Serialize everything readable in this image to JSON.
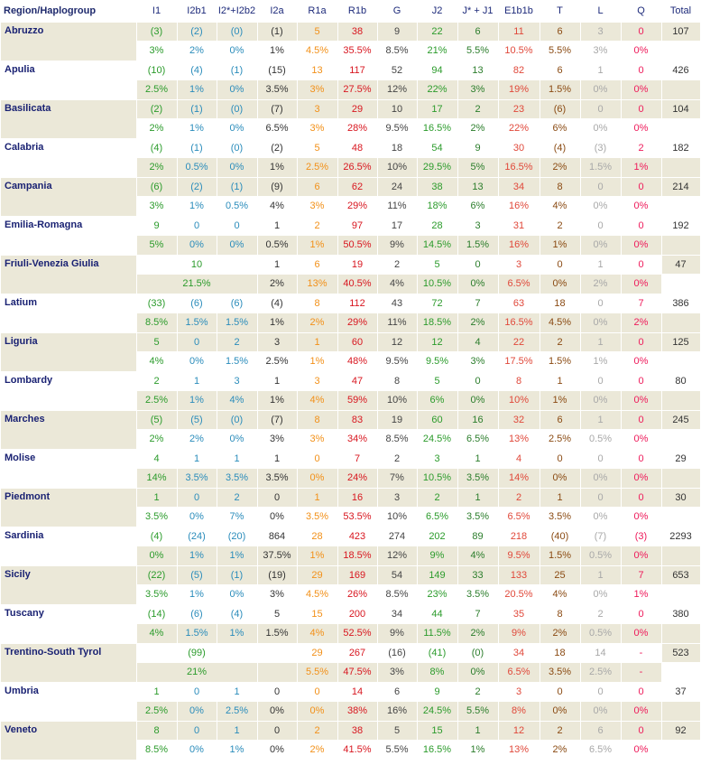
{
  "headers": [
    "Region/Haplogroup",
    "I1",
    "I2b1",
    "I2*+I2b2",
    "I2a",
    "R1a",
    "R1b",
    "G",
    "J2",
    "J* + J1",
    "E1b1b",
    "T",
    "L",
    "Q",
    "Total"
  ],
  "column_keys": [
    "i1",
    "i2b1",
    "i2x",
    "i2a",
    "r1a",
    "r1b",
    "g",
    "j2",
    "j1",
    "e",
    "t",
    "l",
    "q"
  ],
  "colors": {
    "region": "#1a2273",
    "shade": "#ebe8d8",
    "i1": "#2b9b2b",
    "i2": "#2a8cbb",
    "r1a": "#f29018",
    "r1b": "#d8161f",
    "j2": "#2b9b2b",
    "e1b1b": "#e0483a",
    "t": "#8a4a12",
    "l": "#a8a8a8",
    "q": "#ee1a5a"
  },
  "regions": [
    {
      "name": "Abruzzo",
      "total": "107",
      "counts": [
        "(3)",
        "(2)",
        "(0)",
        "(1)",
        "5",
        "38",
        "9",
        "22",
        "6",
        "11",
        "6",
        "3",
        "0"
      ],
      "percents": [
        "3%",
        "2%",
        "0%",
        "1%",
        "4.5%",
        "35.5%",
        "8.5%",
        "21%",
        "5.5%",
        "10.5%",
        "5.5%",
        "3%",
        "0%"
      ]
    },
    {
      "name": "Apulia",
      "total": "426",
      "counts": [
        "(10)",
        "(4)",
        "(1)",
        "(15)",
        "13",
        "117",
        "52",
        "94",
        "13",
        "82",
        "6",
        "1",
        "0"
      ],
      "percents": [
        "2.5%",
        "1%",
        "0%",
        "3.5%",
        "3%",
        "27.5%",
        "12%",
        "22%",
        "3%",
        "19%",
        "1.5%",
        "0%",
        "0%"
      ]
    },
    {
      "name": "Basilicata",
      "total": "104",
      "counts": [
        "(2)",
        "(1)",
        "(0)",
        "(7)",
        "3",
        "29",
        "10",
        "17",
        "2",
        "23",
        "(6)",
        "0",
        "0"
      ],
      "percents": [
        "2%",
        "1%",
        "0%",
        "6.5%",
        "3%",
        "28%",
        "9.5%",
        "16.5%",
        "2%",
        "22%",
        "6%",
        "0%",
        "0%"
      ]
    },
    {
      "name": "Calabria",
      "total": "182",
      "counts": [
        "(4)",
        "(1)",
        "(0)",
        "(2)",
        "5",
        "48",
        "18",
        "54",
        "9",
        "30",
        "(4)",
        "(3)",
        "2"
      ],
      "percents": [
        "2%",
        "0.5%",
        "0%",
        "1%",
        "2.5%",
        "26.5%",
        "10%",
        "29.5%",
        "5%",
        "16.5%",
        "2%",
        "1.5%",
        "1%"
      ]
    },
    {
      "name": "Campania",
      "total": "214",
      "counts": [
        "(6)",
        "(2)",
        "(1)",
        "(9)",
        "6",
        "62",
        "24",
        "38",
        "13",
        "34",
        "8",
        "0",
        "0"
      ],
      "percents": [
        "3%",
        "1%",
        "0.5%",
        "4%",
        "3%",
        "29%",
        "11%",
        "18%",
        "6%",
        "16%",
        "4%",
        "0%",
        "0%"
      ]
    },
    {
      "name": "Emilia-Romagna",
      "total": "192",
      "counts": [
        "9",
        "0",
        "0",
        "1",
        "2",
        "97",
        "17",
        "28",
        "3",
        "31",
        "2",
        "0",
        "0"
      ],
      "percents": [
        "5%",
        "0%",
        "0%",
        "0.5%",
        "1%",
        "50.5%",
        "9%",
        "14.5%",
        "1.5%",
        "16%",
        "1%",
        "0%",
        "0%"
      ]
    },
    {
      "name": "Friuli-Venezia Giulia",
      "total": "47",
      "merged": "10",
      "merged_pct": "21.5%",
      "counts": [
        "1",
        "6",
        "19",
        "2",
        "5",
        "0",
        "3",
        "0",
        "1",
        "0"
      ],
      "percents": [
        "2%",
        "13%",
        "40.5%",
        "4%",
        "10.5%",
        "0%",
        "6.5%",
        "0%",
        "2%",
        "0%"
      ]
    },
    {
      "name": "Latium",
      "total": "386",
      "counts": [
        "(33)",
        "(6)",
        "(6)",
        "(4)",
        "8",
        "112",
        "43",
        "72",
        "7",
        "63",
        "18",
        "0",
        "7"
      ],
      "percents": [
        "8.5%",
        "1.5%",
        "1.5%",
        "1%",
        "2%",
        "29%",
        "11%",
        "18.5%",
        "2%",
        "16.5%",
        "4.5%",
        "0%",
        "2%"
      ]
    },
    {
      "name": "Liguria",
      "total": "125",
      "counts": [
        "5",
        "0",
        "2",
        "3",
        "1",
        "60",
        "12",
        "12",
        "4",
        "22",
        "2",
        "1",
        "0"
      ],
      "percents": [
        "4%",
        "0%",
        "1.5%",
        "2.5%",
        "1%",
        "48%",
        "9.5%",
        "9.5%",
        "3%",
        "17.5%",
        "1.5%",
        "1%",
        "0%"
      ]
    },
    {
      "name": "Lombardy",
      "total": "80",
      "counts": [
        "2",
        "1",
        "3",
        "1",
        "3",
        "47",
        "8",
        "5",
        "0",
        "8",
        "1",
        "0",
        "0"
      ],
      "percents": [
        "2.5%",
        "1%",
        "4%",
        "1%",
        "4%",
        "59%",
        "10%",
        "6%",
        "0%",
        "10%",
        "1%",
        "0%",
        "0%"
      ]
    },
    {
      "name": "Marches",
      "total": "245",
      "counts": [
        "(5)",
        "(5)",
        "(0)",
        "(7)",
        "8",
        "83",
        "19",
        "60",
        "16",
        "32",
        "6",
        "1",
        "0"
      ],
      "percents": [
        "2%",
        "2%",
        "0%",
        "3%",
        "3%",
        "34%",
        "8.5%",
        "24.5%",
        "6.5%",
        "13%",
        "2.5%",
        "0.5%",
        "0%"
      ]
    },
    {
      "name": "Molise",
      "total": "29",
      "counts": [
        "4",
        "1",
        "1",
        "1",
        "0",
        "7",
        "2",
        "3",
        "1",
        "4",
        "0",
        "0",
        "0"
      ],
      "percents": [
        "14%",
        "3.5%",
        "3.5%",
        "3.5%",
        "0%",
        "24%",
        "7%",
        "10.5%",
        "3.5%",
        "14%",
        "0%",
        "0%",
        "0%"
      ]
    },
    {
      "name": "Piedmont",
      "total": "30",
      "counts": [
        "1",
        "0",
        "2",
        "0",
        "1",
        "16",
        "3",
        "2",
        "1",
        "2",
        "1",
        "0",
        "0"
      ],
      "percents": [
        "3.5%",
        "0%",
        "7%",
        "0%",
        "3.5%",
        "53.5%",
        "10%",
        "6.5%",
        "3.5%",
        "6.5%",
        "3.5%",
        "0%",
        "0%"
      ]
    },
    {
      "name": "Sardinia",
      "total": "2293",
      "counts": [
        "(4)",
        "(24)",
        "(20)",
        "864",
        "28",
        "423",
        "274",
        "202",
        "89",
        "218",
        "(40)",
        "(7)",
        "(3)"
      ],
      "percents": [
        "0%",
        "1%",
        "1%",
        "37.5%",
        "1%",
        "18.5%",
        "12%",
        "9%",
        "4%",
        "9.5%",
        "1.5%",
        "0.5%",
        "0%"
      ]
    },
    {
      "name": "Sicily",
      "total": "653",
      "counts": [
        "(22)",
        "(5)",
        "(1)",
        "(19)",
        "29",
        "169",
        "54",
        "149",
        "33",
        "133",
        "25",
        "1",
        "7"
      ],
      "percents": [
        "3.5%",
        "1%",
        "0%",
        "3%",
        "4.5%",
        "26%",
        "8.5%",
        "23%",
        "3.5%",
        "20.5%",
        "4%",
        "0%",
        "1%"
      ]
    },
    {
      "name": "Tuscany",
      "total": "380",
      "counts": [
        "(14)",
        "(6)",
        "(4)",
        "5",
        "15",
        "200",
        "34",
        "44",
        "7",
        "35",
        "8",
        "2",
        "0"
      ],
      "percents": [
        "4%",
        "1.5%",
        "1%",
        "1.5%",
        "4%",
        "52.5%",
        "9%",
        "11.5%",
        "2%",
        "9%",
        "2%",
        "0.5%",
        "0%"
      ]
    },
    {
      "name": "Trentino-South Tyrol",
      "total": "523",
      "merged": "(99)",
      "merged_pct": "21%",
      "counts": [
        "",
        "29",
        "267",
        "(16)",
        "(41)",
        "(0)",
        "34",
        "18",
        "14",
        "-"
      ],
      "percents": [
        "",
        "5.5%",
        "47.5%",
        "3%",
        "8%",
        "0%",
        "6.5%",
        "3.5%",
        "2.5%",
        "-"
      ]
    },
    {
      "name": "Umbria",
      "total": "37",
      "counts": [
        "1",
        "0",
        "1",
        "0",
        "0",
        "14",
        "6",
        "9",
        "2",
        "3",
        "0",
        "0",
        "0"
      ],
      "percents": [
        "2.5%",
        "0%",
        "2.5%",
        "0%",
        "0%",
        "38%",
        "16%",
        "24.5%",
        "5.5%",
        "8%",
        "0%",
        "0%",
        "0%"
      ]
    },
    {
      "name": "Veneto",
      "total": "92",
      "counts": [
        "8",
        "0",
        "1",
        "0",
        "2",
        "38",
        "5",
        "15",
        "1",
        "12",
        "2",
        "6",
        "0"
      ],
      "percents": [
        "8.5%",
        "0%",
        "1%",
        "0%",
        "2%",
        "41.5%",
        "5.5%",
        "16.5%",
        "1%",
        "13%",
        "2%",
        "6.5%",
        "0%"
      ]
    }
  ]
}
